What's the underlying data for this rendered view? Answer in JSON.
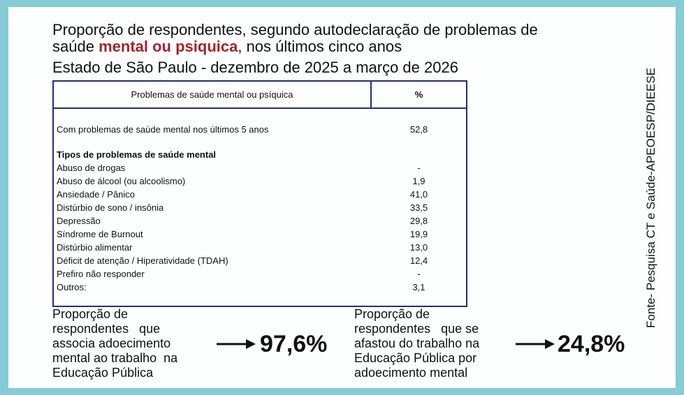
{
  "title": {
    "line1": "Proporção de respondentes, segundo autodeclaração de problemas de",
    "line2_before": "saúde",
    "line2_highlight": "mental ou psiquica",
    "line2_after": ", nos últimos cinco anos",
    "subtitle": "Estado de São Paulo - dezembro de 2025 a março de 2026"
  },
  "table": {
    "header": [
      "Problemas de saúde mental ou psíquica",
      "%"
    ],
    "summary": [
      "Com problemas de saúde mental nos últimos 5 anos",
      "52,8"
    ],
    "section": "Tipos de problemas de saúde mental",
    "items": [
      [
        "Abuso de drogas",
        "-"
      ],
      [
        "Abuso de álcool (ou alcoolismo)",
        "1,9"
      ],
      [
        "Ansiedade / Pânico",
        "41,0"
      ],
      [
        "Distúrbio de sono / insônia",
        "33,5"
      ],
      [
        "Depressão",
        "29,8"
      ],
      [
        "Síndrome de Burnout",
        "19,9"
      ],
      [
        "Distúrbio alimentar",
        "13,0"
      ],
      [
        "Déficit de atenção / Hiperatividade (TDAH)",
        "12,4"
      ],
      [
        "Prefiro não responder",
        "-"
      ],
      [
        "Outros:",
        "3,1"
      ]
    ]
  },
  "highlights": [
    {
      "lines": [
        "Proporção de",
        "respondentes   que",
        "associa adoecimento",
        "mental ao trabalho  na",
        "Educação Pública"
      ],
      "value": "97,6%"
    },
    {
      "lines": [
        "Proporção de",
        "respondentes   que se",
        "afastou do trabalho na",
        "Educação Pública por",
        "adoecimento mental"
      ],
      "value": "24,8%"
    }
  ],
  "source": "Fonte- Pesquisa CT e Saúde-APEOESP/DIEESE"
}
